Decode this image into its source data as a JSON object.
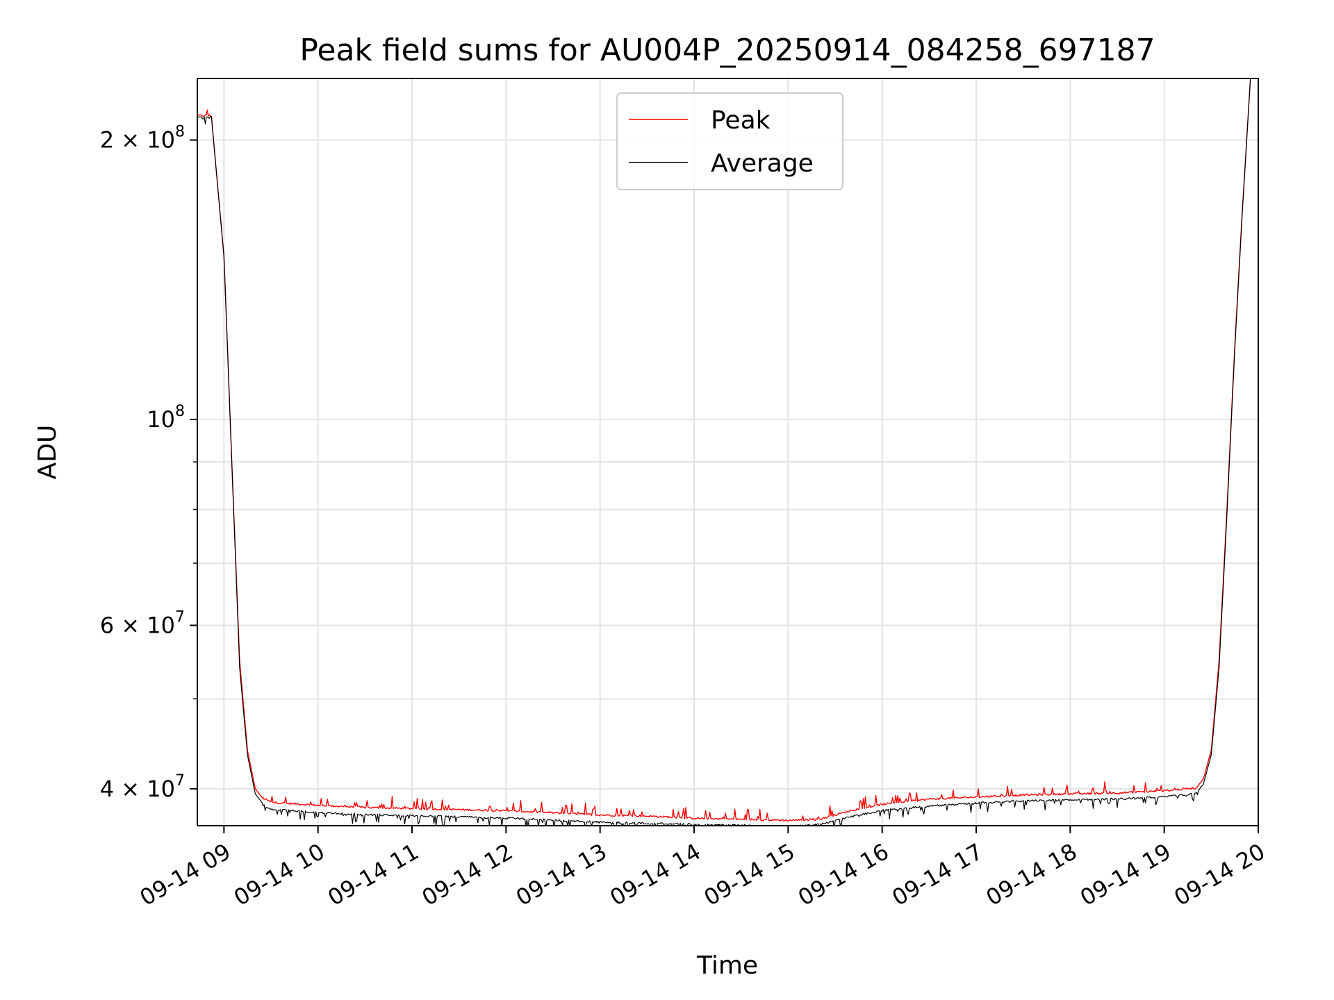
{
  "chart_data": {
    "type": "line",
    "title": "Peak field sums for AU004P_20250914_084258_697187",
    "xlabel": "Time",
    "ylabel": "ADU",
    "y_scale": "log",
    "grid": true,
    "legend_position": "upper-center",
    "xlim": [
      "2025-09-14 08:43",
      "2025-09-14 20:00"
    ],
    "ylim": [
      36500000,
      233000000
    ],
    "x_ticks": [
      {
        "value": "2025-09-14 09:00",
        "label": "09-14 09"
      },
      {
        "value": "2025-09-14 10:00",
        "label": "09-14 10"
      },
      {
        "value": "2025-09-14 11:00",
        "label": "09-14 11"
      },
      {
        "value": "2025-09-14 12:00",
        "label": "09-14 12"
      },
      {
        "value": "2025-09-14 13:00",
        "label": "09-14 13"
      },
      {
        "value": "2025-09-14 14:00",
        "label": "09-14 14"
      },
      {
        "value": "2025-09-14 15:00",
        "label": "09-14 15"
      },
      {
        "value": "2025-09-14 16:00",
        "label": "09-14 16"
      },
      {
        "value": "2025-09-14 17:00",
        "label": "09-14 17"
      },
      {
        "value": "2025-09-14 18:00",
        "label": "09-14 18"
      },
      {
        "value": "2025-09-14 19:00",
        "label": "09-14 19"
      },
      {
        "value": "2025-09-14 20:00",
        "label": "09-14 20"
      }
    ],
    "y_ticks": [
      {
        "value": 200000000,
        "mantissa": "2",
        "exponent": "8"
      },
      {
        "value": 100000000,
        "mantissa": "",
        "exponent": "8"
      },
      {
        "value": 60000000,
        "mantissa": "6",
        "exponent": "7"
      },
      {
        "value": 40000000,
        "mantissa": "4",
        "exponent": "7"
      }
    ],
    "y_minor_ticks": [
      90000000,
      80000000,
      70000000,
      50000000
    ],
    "series": [
      {
        "name": "Peak",
        "color": "#ff0000",
        "x": [
          "2025-09-14 08:43",
          "2025-09-14 08:50",
          "2025-09-14 08:52",
          "2025-09-14 09:00",
          "2025-09-14 09:05",
          "2025-09-14 09:10",
          "2025-09-14 09:15",
          "2025-09-14 09:20",
          "2025-09-14 09:25",
          "2025-09-14 09:30",
          "2025-09-14 10:00",
          "2025-09-14 10:30",
          "2025-09-14 11:00",
          "2025-09-14 11:30",
          "2025-09-14 12:00",
          "2025-09-14 12:30",
          "2025-09-14 13:00",
          "2025-09-14 13:30",
          "2025-09-14 14:00",
          "2025-09-14 14:30",
          "2025-09-14 15:00",
          "2025-09-14 15:20",
          "2025-09-14 15:40",
          "2025-09-14 16:00",
          "2025-09-14 16:30",
          "2025-09-14 17:00",
          "2025-09-14 17:30",
          "2025-09-14 18:00",
          "2025-09-14 18:30",
          "2025-09-14 19:00",
          "2025-09-14 19:20",
          "2025-09-14 19:25",
          "2025-09-14 19:30",
          "2025-09-14 19:35",
          "2025-09-14 19:40",
          "2025-09-14 19:45",
          "2025-09-14 19:50",
          "2025-09-14 19:55"
        ],
        "values": [
          212000000,
          212000000,
          212000000,
          150000000,
          90000000,
          55000000,
          44000000,
          40000000,
          39000000,
          38600000,
          38300000,
          38100000,
          38000000,
          37900000,
          37800000,
          37600000,
          37400000,
          37300000,
          37100000,
          37000000,
          36900000,
          37000000,
          37800000,
          38400000,
          38900000,
          39100000,
          39300000,
          39400000,
          39500000,
          39700000,
          40000000,
          41000000,
          44000000,
          55000000,
          80000000,
          120000000,
          170000000,
          233000000
        ]
      },
      {
        "name": "Average",
        "color": "#000000",
        "x": [
          "2025-09-14 08:43",
          "2025-09-14 08:50",
          "2025-09-14 08:52",
          "2025-09-14 09:00",
          "2025-09-14 09:05",
          "2025-09-14 09:10",
          "2025-09-14 09:15",
          "2025-09-14 09:20",
          "2025-09-14 09:25",
          "2025-09-14 09:30",
          "2025-09-14 10:00",
          "2025-09-14 10:30",
          "2025-09-14 11:00",
          "2025-09-14 11:30",
          "2025-09-14 12:00",
          "2025-09-14 12:30",
          "2025-09-14 13:00",
          "2025-09-14 13:30",
          "2025-09-14 14:00",
          "2025-09-14 14:30",
          "2025-09-14 15:00",
          "2025-09-14 15:20",
          "2025-09-14 15:40",
          "2025-09-14 16:00",
          "2025-09-14 16:30",
          "2025-09-14 17:00",
          "2025-09-14 17:30",
          "2025-09-14 18:00",
          "2025-09-14 18:30",
          "2025-09-14 19:00",
          "2025-09-14 19:20",
          "2025-09-14 19:25",
          "2025-09-14 19:30",
          "2025-09-14 19:35",
          "2025-09-14 19:40",
          "2025-09-14 19:45",
          "2025-09-14 19:50",
          "2025-09-14 19:55"
        ],
        "values": [
          212000000,
          212000000,
          212000000,
          150000000,
          90000000,
          54000000,
          43500000,
          39500000,
          38500000,
          38100000,
          37800000,
          37600000,
          37500000,
          37400000,
          37300000,
          37100000,
          36900000,
          36800000,
          36700000,
          36600000,
          36500000,
          36700000,
          37400000,
          38000000,
          38400000,
          38700000,
          38900000,
          39000000,
          39100000,
          39300000,
          39600000,
          40500000,
          43500000,
          54000000,
          79000000,
          119000000,
          169000000,
          233000000
        ]
      }
    ]
  }
}
